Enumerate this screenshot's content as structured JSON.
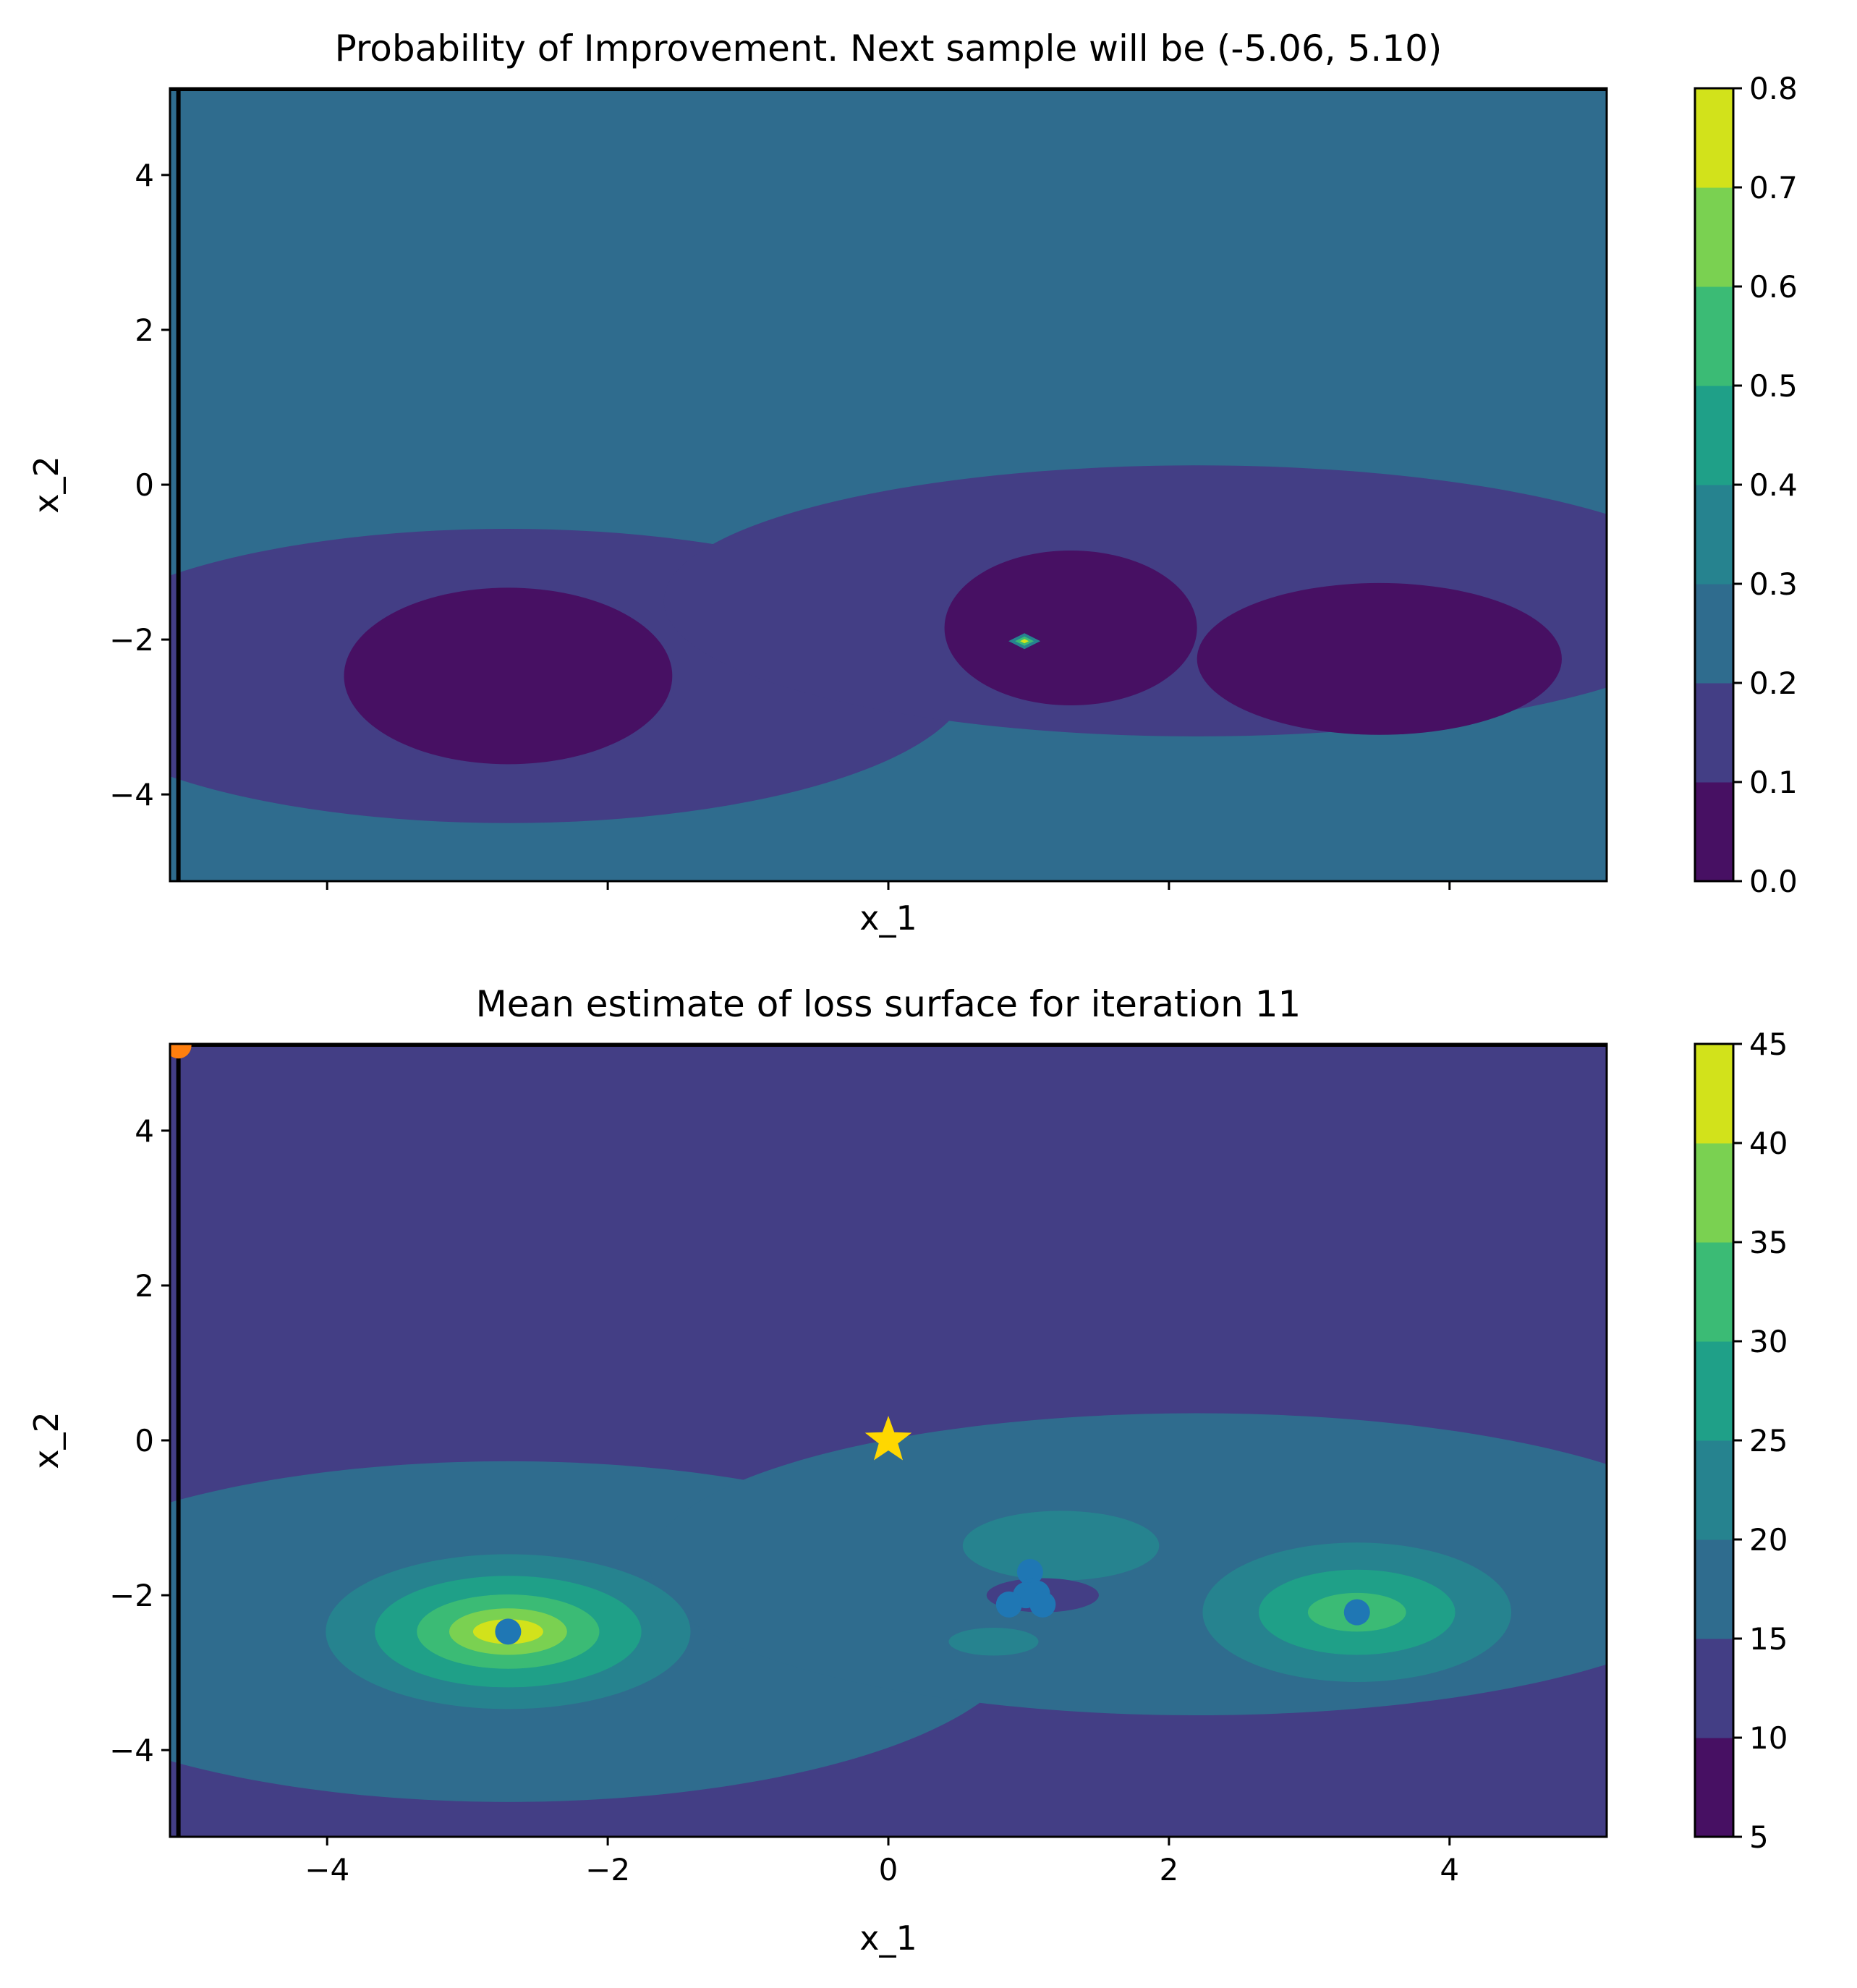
{
  "chart_data": [
    {
      "type": "heatmap",
      "subtype": "filled-contour",
      "title": "Probability of Improvement. Next sample will be (-5.06, 5.10)",
      "xlabel": "x_1",
      "ylabel": "x_2",
      "xlim": [
        -5.12,
        5.12
      ],
      "ylim": [
        -5.12,
        5.12
      ],
      "xticks": [
        -4,
        -2,
        0,
        2,
        4
      ],
      "xtick_labels_visible": false,
      "yticks": [
        -4,
        -2,
        0,
        2,
        4
      ],
      "ytick_labels": [
        "−4",
        "−2",
        "0",
        "2",
        "4"
      ],
      "colorbar": {
        "levels": [
          0.0,
          0.1,
          0.2,
          0.3,
          0.4,
          0.5,
          0.6,
          0.7,
          0.8
        ],
        "labels": [
          "0.0",
          "0.1",
          "0.2",
          "0.3",
          "0.4",
          "0.5",
          "0.6",
          "0.7",
          "0.8"
        ],
        "colors": [
          "#471063",
          "#433e85",
          "#2f6c8e",
          "#26838f",
          "#1fa088",
          "#3bbb75",
          "#7ad151",
          "#d2e21b"
        ]
      },
      "background_level_color": "#2f6c8e",
      "regions": [
        {
          "name": "left-basin-outer",
          "center": [
            -2.71,
            -2.47
          ],
          "radii": [
            3.3,
            1.9
          ],
          "color": "#433e85"
        },
        {
          "name": "right-basin-outer",
          "center": [
            2.2,
            -1.5
          ],
          "radii": [
            3.8,
            1.75
          ],
          "color": "#433e85"
        },
        {
          "name": "left-basin-inner",
          "center": [
            -2.71,
            -2.47
          ],
          "radii": [
            1.17,
            1.14
          ],
          "color": "#471063"
        },
        {
          "name": "right-basin-inner",
          "center": [
            3.5,
            -2.25
          ],
          "radii": [
            1.3,
            0.98
          ],
          "color": "#471063"
        },
        {
          "name": "middle-basin-inner",
          "center": [
            1.3,
            -1.85
          ],
          "radii": [
            0.9,
            1.0
          ],
          "color": "#471063"
        }
      ],
      "spike": {
        "x": 0.97,
        "y": -2.02,
        "colors": [
          "#26838f",
          "#3bbb75",
          "#d2e21b"
        ]
      },
      "next_sample": {
        "x": -5.06,
        "y": 5.1
      },
      "vertical_line_x": -5.06,
      "horizontal_line_y": 5.12
    },
    {
      "type": "heatmap",
      "subtype": "filled-contour",
      "title": "Mean estimate of loss surface for iteration 11",
      "xlabel": "x_1",
      "ylabel": "x_2",
      "xlim": [
        -5.12,
        5.12
      ],
      "ylim": [
        -5.12,
        5.12
      ],
      "xticks": [
        -4,
        -2,
        0,
        2,
        4
      ],
      "xtick_labels": [
        "−4",
        "−2",
        "0",
        "2",
        "4"
      ],
      "yticks": [
        -4,
        -2,
        0,
        2,
        4
      ],
      "ytick_labels": [
        "−4",
        "−2",
        "0",
        "2",
        "4"
      ],
      "colorbar": {
        "levels": [
          5,
          10,
          15,
          20,
          25,
          30,
          35,
          40,
          45
        ],
        "labels": [
          "5",
          "10",
          "15",
          "20",
          "25",
          "30",
          "35",
          "40",
          "45"
        ],
        "colors": [
          "#471063",
          "#433e85",
          "#2f6c8e",
          "#26838f",
          "#1fa088",
          "#3bbb75",
          "#7ad151",
          "#d2e21b"
        ]
      },
      "background_level_color": "#433e85",
      "regions": [
        {
          "name": "left-basin-15",
          "center": [
            -2.71,
            -2.47
          ],
          "radii": [
            3.7,
            2.2
          ],
          "color": "#2f6c8e"
        },
        {
          "name": "right-basin-15",
          "center": [
            2.2,
            -1.6
          ],
          "radii": [
            3.9,
            1.95
          ],
          "color": "#2f6c8e"
        }
      ],
      "peaks": [
        {
          "name": "left-peak",
          "center": [
            -2.71,
            -2.47
          ],
          "rings": [
            {
              "radii": [
                1.3,
                1.0
              ],
              "color": "#26838f"
            },
            {
              "radii": [
                0.95,
                0.72
              ],
              "color": "#1fa088"
            },
            {
              "radii": [
                0.65,
                0.48
              ],
              "color": "#3bbb75"
            },
            {
              "radii": [
                0.42,
                0.3
              ],
              "color": "#7ad151"
            },
            {
              "radii": [
                0.25,
                0.16
              ],
              "color": "#d2e21b"
            }
          ]
        },
        {
          "name": "right-peak",
          "center": [
            3.34,
            -2.22
          ],
          "rings": [
            {
              "radii": [
                1.1,
                0.9
              ],
              "color": "#26838f"
            },
            {
              "radii": [
                0.7,
                0.55
              ],
              "color": "#1fa088"
            },
            {
              "radii": [
                0.35,
                0.25
              ],
              "color": "#3bbb75"
            }
          ]
        }
      ],
      "patches": [
        {
          "name": "middle-upper-patch",
          "center": [
            1.23,
            -1.36
          ],
          "radii": [
            0.7,
            0.45
          ],
          "color": "#26838f"
        },
        {
          "name": "middle-lower-patch",
          "center": [
            0.75,
            -2.6
          ],
          "radii": [
            0.32,
            0.18
          ],
          "color": "#26838f"
        },
        {
          "name": "middle-dip",
          "center": [
            1.1,
            -2.0
          ],
          "radii": [
            0.4,
            0.22
          ],
          "color": "#433e85"
        }
      ],
      "sampled_points": {
        "color": "#1f77b4",
        "points": [
          {
            "x": -2.71,
            "y": -2.47
          },
          {
            "x": 3.34,
            "y": -2.22
          },
          {
            "x": 1.01,
            "y": -1.7
          },
          {
            "x": 1.02,
            "y": -1.95
          },
          {
            "x": 0.98,
            "y": -2.0
          },
          {
            "x": 1.06,
            "y": -1.98
          },
          {
            "x": 0.86,
            "y": -2.12
          },
          {
            "x": 1.1,
            "y": -2.12
          }
        ]
      },
      "global_minimum": {
        "x": 0.0,
        "y": 0.0,
        "color": "#ffd700",
        "marker": "star"
      },
      "next_sample": {
        "x": -5.06,
        "y": 5.1,
        "color": "#ff7f0e"
      },
      "vertical_line_x": -5.06,
      "horizontal_line_y": 5.12
    }
  ]
}
